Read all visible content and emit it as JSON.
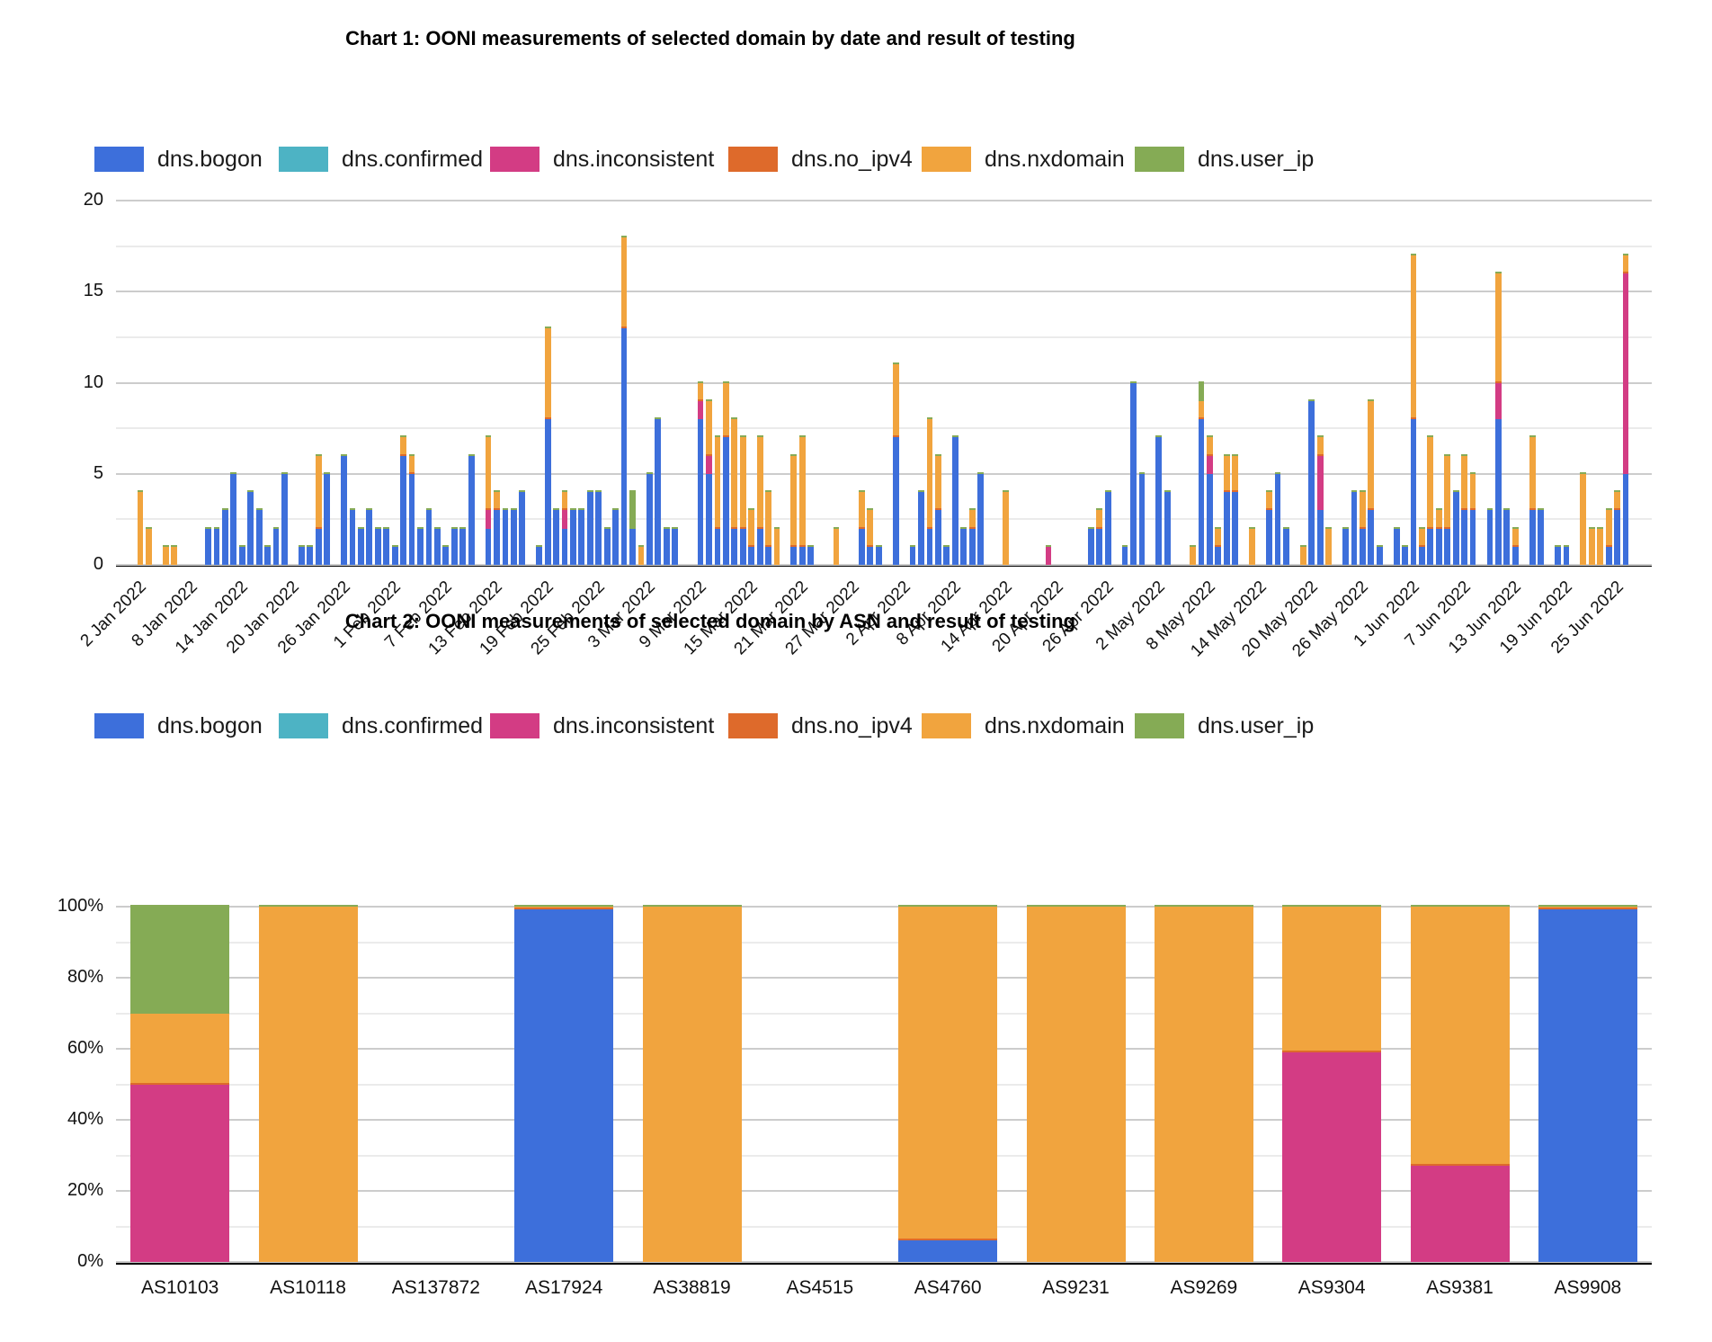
{
  "series": [
    {
      "key": "bogon",
      "label": "dns.bogon",
      "color": "#3d6fdb"
    },
    {
      "key": "confirmed",
      "label": "dns.confirmed",
      "color": "#4db3c4"
    },
    {
      "key": "inconsistent",
      "label": "dns.inconsistent",
      "color": "#d33c84"
    },
    {
      "key": "no_ipv4",
      "label": "dns.no_ipv4",
      "color": "#de6a2b"
    },
    {
      "key": "nxdomain",
      "label": "dns.nxdomain",
      "color": "#f1a43e"
    },
    {
      "key": "user_ip",
      "label": "dns.user_ip",
      "color": "#85ab55"
    }
  ],
  "chart_data": [
    {
      "type": "bar",
      "stacked": true,
      "title": "Chart 1: OONI measurements of selected domain by date and result of testing",
      "xlabel": "",
      "ylabel": "",
      "ylim": [
        0,
        20
      ],
      "y_major_step": 5,
      "y_minor_step": 2.5,
      "y_tick_labels": [
        "0",
        "5",
        "10",
        "15",
        "20"
      ],
      "grid": true,
      "legend_position": "top",
      "x_base_date": "2 Jan 2022",
      "x_tick_days": [
        0,
        6,
        12,
        18,
        24,
        30,
        36,
        42,
        48,
        54,
        60,
        66,
        72,
        78,
        84,
        90,
        96,
        102,
        108,
        114,
        120,
        126,
        132,
        138,
        144,
        150,
        156,
        162,
        168,
        174
      ],
      "x_tick_labels": [
        "2 Jan 2022",
        "8 Jan 2022",
        "14 Jan 2022",
        "20 Jan 2022",
        "26 Jan 2022",
        "1 Feb 2022",
        "7 Feb 2022",
        "13 Feb 2022",
        "19 Feb 2022",
        "25 Feb 2022",
        "3 Mar 2022",
        "9 Mar 2022",
        "15 Mar 2022",
        "21 Mar 2022",
        "27 Mar 2022",
        "2 Apr 2022",
        "8 Apr 2022",
        "14 Apr 2022",
        "20 Apr 2022",
        "26 Apr 2022",
        "2 May 2022",
        "8 May 2022",
        "14 May 2022",
        "20 May 2022",
        "26 May 2022",
        "1 Jun 2022",
        "7 Jun 2022",
        "13 Jun 2022",
        "19 Jun 2022",
        "25 Jun 2022"
      ],
      "series_order": [
        "bogon",
        "confirmed",
        "inconsistent",
        "no_ipv4",
        "nxdomain",
        "user_ip"
      ],
      "note": "bars = [day_offset_from_2Jan2022, bogon, confirmed, inconsistent, no_ipv4, nxdomain, user_ip] (values estimated from gridlines)",
      "bars": [
        [
          0,
          0,
          0,
          0,
          0,
          4,
          0
        ],
        [
          1,
          0,
          0,
          0,
          0,
          2,
          0
        ],
        [
          3,
          0,
          0,
          0,
          0,
          1,
          0
        ],
        [
          4,
          0,
          0,
          0,
          0,
          1,
          0
        ],
        [
          8,
          2,
          0,
          0,
          0,
          0,
          0
        ],
        [
          9,
          2,
          0,
          0,
          0,
          0,
          0
        ],
        [
          10,
          3,
          0,
          0,
          0,
          0,
          0
        ],
        [
          11,
          5,
          0,
          0,
          0,
          0,
          0
        ],
        [
          12,
          1,
          0,
          0,
          0,
          0,
          0
        ],
        [
          13,
          4,
          0,
          0,
          0,
          0,
          0
        ],
        [
          14,
          3,
          0,
          0,
          0,
          0,
          0
        ],
        [
          15,
          1,
          0,
          0,
          0,
          0,
          0
        ],
        [
          16,
          2,
          0,
          0,
          0,
          0,
          0
        ],
        [
          17,
          5,
          0,
          0,
          0,
          0,
          0
        ],
        [
          19,
          1,
          0,
          0,
          0,
          0,
          0
        ],
        [
          20,
          1,
          0,
          0,
          0,
          0,
          0
        ],
        [
          21,
          2,
          0,
          0,
          0,
          4,
          0
        ],
        [
          22,
          5,
          0,
          0,
          0,
          0,
          0
        ],
        [
          24,
          6,
          0,
          0,
          0,
          0,
          0
        ],
        [
          25,
          3,
          0,
          0,
          0,
          0,
          0
        ],
        [
          26,
          2,
          0,
          0,
          0,
          0,
          0
        ],
        [
          27,
          3,
          0,
          0,
          0,
          0,
          0
        ],
        [
          28,
          2,
          0,
          0,
          0,
          0,
          0
        ],
        [
          29,
          2,
          0,
          0,
          0,
          0,
          0
        ],
        [
          30,
          1,
          0,
          0,
          0,
          0,
          0
        ],
        [
          31,
          6,
          0,
          0,
          0,
          1,
          0
        ],
        [
          32,
          5,
          0,
          0,
          0,
          1,
          0
        ],
        [
          33,
          2,
          0,
          0,
          0,
          0,
          0
        ],
        [
          34,
          3,
          0,
          0,
          0,
          0,
          0
        ],
        [
          35,
          2,
          0,
          0,
          0,
          0,
          0
        ],
        [
          36,
          1,
          0,
          0,
          0,
          0,
          0
        ],
        [
          37,
          2,
          0,
          0,
          0,
          0,
          0
        ],
        [
          38,
          2,
          0,
          0,
          0,
          0,
          0
        ],
        [
          39,
          6,
          0,
          0,
          0,
          0,
          0
        ],
        [
          41,
          2,
          0,
          1,
          0,
          4,
          0
        ],
        [
          42,
          3,
          0,
          0,
          0,
          1,
          0
        ],
        [
          43,
          3,
          0,
          0,
          0,
          0,
          0
        ],
        [
          44,
          3,
          0,
          0,
          0,
          0,
          0
        ],
        [
          45,
          4,
          0,
          0,
          0,
          0,
          0
        ],
        [
          47,
          1,
          0,
          0,
          0,
          0,
          0
        ],
        [
          48,
          8,
          0,
          0,
          0,
          5,
          0
        ],
        [
          49,
          3,
          0,
          0,
          0,
          0,
          0
        ],
        [
          50,
          2,
          0,
          1,
          0,
          1,
          0
        ],
        [
          51,
          3,
          0,
          0,
          0,
          0,
          0
        ],
        [
          52,
          3,
          0,
          0,
          0,
          0,
          0
        ],
        [
          53,
          4,
          0,
          0,
          0,
          0,
          0
        ],
        [
          54,
          4,
          0,
          0,
          0,
          0,
          0
        ],
        [
          55,
          2,
          0,
          0,
          0,
          0,
          0
        ],
        [
          56,
          3,
          0,
          0,
          0,
          0,
          0
        ],
        [
          57,
          13,
          0,
          0,
          0,
          5,
          0
        ],
        [
          58,
          2,
          0,
          0,
          0,
          0,
          2
        ],
        [
          59,
          0,
          0,
          0,
          0,
          1,
          0
        ],
        [
          60,
          5,
          0,
          0,
          0,
          0,
          0
        ],
        [
          61,
          8,
          0,
          0,
          0,
          0,
          0
        ],
        [
          62,
          2,
          0,
          0,
          0,
          0,
          0
        ],
        [
          63,
          2,
          0,
          0,
          0,
          0,
          0
        ],
        [
          66,
          8,
          0,
          1,
          0,
          1,
          0
        ],
        [
          67,
          5,
          0,
          1,
          0,
          3,
          0
        ],
        [
          68,
          2,
          0,
          0,
          0,
          5,
          0
        ],
        [
          69,
          7,
          0,
          0,
          0,
          3,
          0
        ],
        [
          70,
          2,
          0,
          0,
          0,
          6,
          0
        ],
        [
          71,
          2,
          0,
          0,
          0,
          5,
          0
        ],
        [
          72,
          1,
          0,
          0,
          0,
          2,
          0
        ],
        [
          73,
          2,
          0,
          0,
          0,
          5,
          0
        ],
        [
          74,
          1,
          0,
          0,
          0,
          3,
          0
        ],
        [
          75,
          0,
          0,
          0,
          0,
          2,
          0
        ],
        [
          77,
          1,
          0,
          0,
          0,
          5,
          0
        ],
        [
          78,
          1,
          0,
          0,
          0,
          6,
          0
        ],
        [
          79,
          1,
          0,
          0,
          0,
          0,
          0
        ],
        [
          82,
          0,
          0,
          0,
          0,
          2,
          0
        ],
        [
          85,
          2,
          0,
          0,
          0,
          2,
          0
        ],
        [
          86,
          1,
          0,
          0,
          0,
          2,
          0
        ],
        [
          87,
          1,
          0,
          0,
          0,
          0,
          0
        ],
        [
          89,
          7,
          0,
          0,
          0,
          4,
          0
        ],
        [
          91,
          1,
          0,
          0,
          0,
          0,
          0
        ],
        [
          92,
          4,
          0,
          0,
          0,
          0,
          0
        ],
        [
          93,
          2,
          0,
          0,
          0,
          6,
          0
        ],
        [
          94,
          3,
          0,
          0,
          0,
          3,
          0
        ],
        [
          95,
          1,
          0,
          0,
          0,
          0,
          0
        ],
        [
          96,
          7,
          0,
          0,
          0,
          0,
          0
        ],
        [
          97,
          2,
          0,
          0,
          0,
          0,
          0
        ],
        [
          98,
          2,
          0,
          0,
          0,
          1,
          0
        ],
        [
          99,
          5,
          0,
          0,
          0,
          0,
          0
        ],
        [
          102,
          0,
          0,
          0,
          0,
          4,
          0
        ],
        [
          107,
          0,
          0,
          1,
          0,
          0,
          0
        ],
        [
          112,
          2,
          0,
          0,
          0,
          0,
          0
        ],
        [
          113,
          2,
          0,
          0,
          0,
          1,
          0
        ],
        [
          114,
          4,
          0,
          0,
          0,
          0,
          0
        ],
        [
          116,
          1,
          0,
          0,
          0,
          0,
          0
        ],
        [
          117,
          10,
          0,
          0,
          0,
          0,
          0
        ],
        [
          118,
          5,
          0,
          0,
          0,
          0,
          0
        ],
        [
          120,
          7,
          0,
          0,
          0,
          0,
          0
        ],
        [
          121,
          4,
          0,
          0,
          0,
          0,
          0
        ],
        [
          124,
          0,
          0,
          0,
          0,
          1,
          0
        ],
        [
          125,
          8,
          0,
          0,
          0,
          1,
          1
        ],
        [
          126,
          5,
          0,
          1,
          0,
          1,
          0
        ],
        [
          127,
          1,
          0,
          0,
          0,
          1,
          0
        ],
        [
          128,
          4,
          0,
          0,
          0,
          2,
          0
        ],
        [
          129,
          4,
          0,
          0,
          0,
          2,
          0
        ],
        [
          131,
          0,
          0,
          0,
          0,
          2,
          0
        ],
        [
          133,
          3,
          0,
          0,
          0,
          1,
          0
        ],
        [
          134,
          5,
          0,
          0,
          0,
          0,
          0
        ],
        [
          135,
          2,
          0,
          0,
          0,
          0,
          0
        ],
        [
          137,
          0,
          0,
          0,
          0,
          1,
          0
        ],
        [
          138,
          9,
          0,
          0,
          0,
          0,
          0
        ],
        [
          139,
          3,
          0,
          3,
          0,
          1,
          0
        ],
        [
          140,
          0,
          0,
          0,
          0,
          2,
          0
        ],
        [
          142,
          2,
          0,
          0,
          0,
          0,
          0
        ],
        [
          143,
          4,
          0,
          0,
          0,
          0,
          0
        ],
        [
          144,
          2,
          0,
          0,
          0,
          2,
          0
        ],
        [
          145,
          3,
          0,
          0,
          0,
          6,
          0
        ],
        [
          146,
          1,
          0,
          0,
          0,
          0,
          0
        ],
        [
          148,
          2,
          0,
          0,
          0,
          0,
          0
        ],
        [
          149,
          1,
          0,
          0,
          0,
          0,
          0
        ],
        [
          150,
          8,
          0,
          0,
          0,
          9,
          0
        ],
        [
          151,
          1,
          0,
          0,
          0,
          1,
          0
        ],
        [
          152,
          2,
          0,
          0,
          0,
          5,
          0
        ],
        [
          153,
          2,
          0,
          0,
          0,
          1,
          0
        ],
        [
          154,
          2,
          0,
          0,
          0,
          4,
          0
        ],
        [
          155,
          4,
          0,
          0,
          0,
          0,
          0
        ],
        [
          156,
          3,
          0,
          0,
          0,
          3,
          0
        ],
        [
          157,
          3,
          0,
          0,
          0,
          2,
          0
        ],
        [
          159,
          3,
          0,
          0,
          0,
          0,
          0
        ],
        [
          160,
          8,
          0,
          2,
          0,
          6,
          0
        ],
        [
          161,
          3,
          0,
          0,
          0,
          0,
          0
        ],
        [
          162,
          1,
          0,
          0,
          0,
          1,
          0
        ],
        [
          164,
          3,
          0,
          0,
          0,
          4,
          0
        ],
        [
          165,
          3,
          0,
          0,
          0,
          0,
          0
        ],
        [
          167,
          1,
          0,
          0,
          0,
          0,
          0
        ],
        [
          168,
          1,
          0,
          0,
          0,
          0,
          0
        ],
        [
          170,
          0,
          0,
          0,
          0,
          5,
          0
        ],
        [
          171,
          0,
          0,
          0,
          0,
          2,
          0
        ],
        [
          172,
          0,
          0,
          0,
          0,
          2,
          0
        ],
        [
          173,
          1,
          0,
          0,
          0,
          2,
          0
        ],
        [
          174,
          3,
          0,
          0,
          0,
          1,
          0
        ],
        [
          175,
          5,
          0,
          11,
          0,
          1,
          0
        ]
      ]
    },
    {
      "type": "bar",
      "stacked": true,
      "percent": true,
      "title": "Chart 2: OONI measurements of selected domain by ASN and result of testing",
      "xlabel": "",
      "ylabel": "",
      "ylim": [
        0,
        100
      ],
      "y_major_step": 20,
      "y_minor_step": 10,
      "y_tick_labels": [
        "0%",
        "20%",
        "40%",
        "60%",
        "80%",
        "100%"
      ],
      "grid": true,
      "legend_position": "top",
      "categories": [
        "AS10103",
        "AS10118",
        "AS137872",
        "AS17924",
        "AS38819",
        "AS4515",
        "AS4760",
        "AS9231",
        "AS9269",
        "AS9304",
        "AS9381",
        "AS9908"
      ],
      "series_order": [
        "bogon",
        "confirmed",
        "inconsistent",
        "no_ipv4",
        "nxdomain",
        "user_ip"
      ],
      "note": "bars = [bogon, confirmed, inconsistent, no_ipv4, nxdomain, user_ip] in percent; empty array = no measurements shown",
      "bars": [
        [
          0,
          0,
          50,
          0,
          20,
          30
        ],
        [
          0,
          0,
          0,
          0,
          100,
          0
        ],
        [],
        [
          99.3,
          0,
          0,
          0,
          0.7,
          0
        ],
        [
          0,
          0,
          0,
          0,
          100,
          0
        ],
        [],
        [
          6,
          0,
          0,
          0,
          94,
          0
        ],
        [
          0,
          0,
          0,
          0,
          100,
          0
        ],
        [
          0,
          0,
          0,
          0,
          100,
          0
        ],
        [
          0,
          0,
          59,
          0,
          41,
          0
        ],
        [
          0,
          0,
          27,
          0,
          73,
          0
        ],
        [
          99.3,
          0,
          0,
          0,
          0.7,
          0
        ]
      ]
    }
  ]
}
